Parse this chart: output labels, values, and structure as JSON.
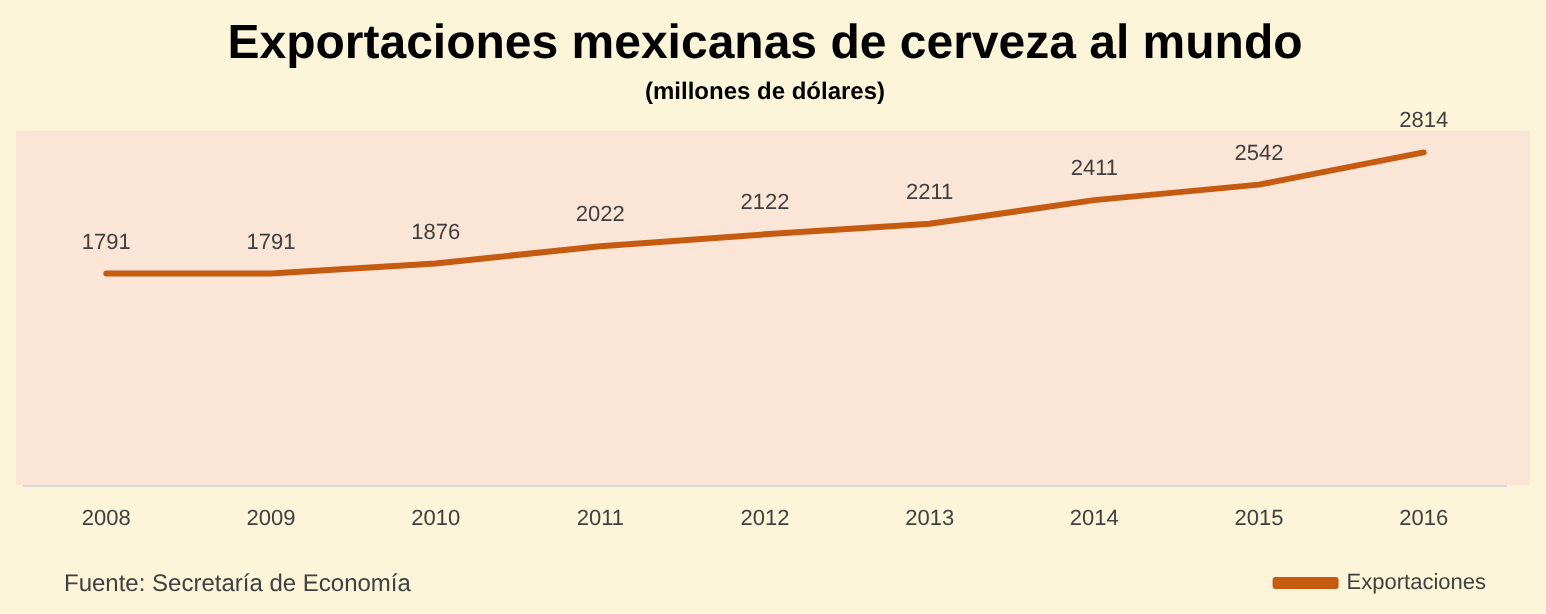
{
  "chart_data": {
    "type": "line",
    "title": "Exportaciones mexicanas de cerveza al mundo",
    "subtitle": "(millones de dólares)",
    "categories": [
      "2008",
      "2009",
      "2010",
      "2011",
      "2012",
      "2013",
      "2014",
      "2015",
      "2016"
    ],
    "series": [
      {
        "name": "Exportaciones",
        "color": "#c55a11",
        "values": [
          1791,
          1791,
          1876,
          2022,
          2122,
          2211,
          2411,
          2542,
          2814
        ]
      }
    ],
    "ylim": [
      0,
      3000
    ],
    "tick_labels": "x",
    "grid": false,
    "legend": "bottom right",
    "marker": "none",
    "line_style": "solid",
    "data_labels": true,
    "annotations": [
      "Fuente: Secretaría de Economía"
    ]
  }
}
